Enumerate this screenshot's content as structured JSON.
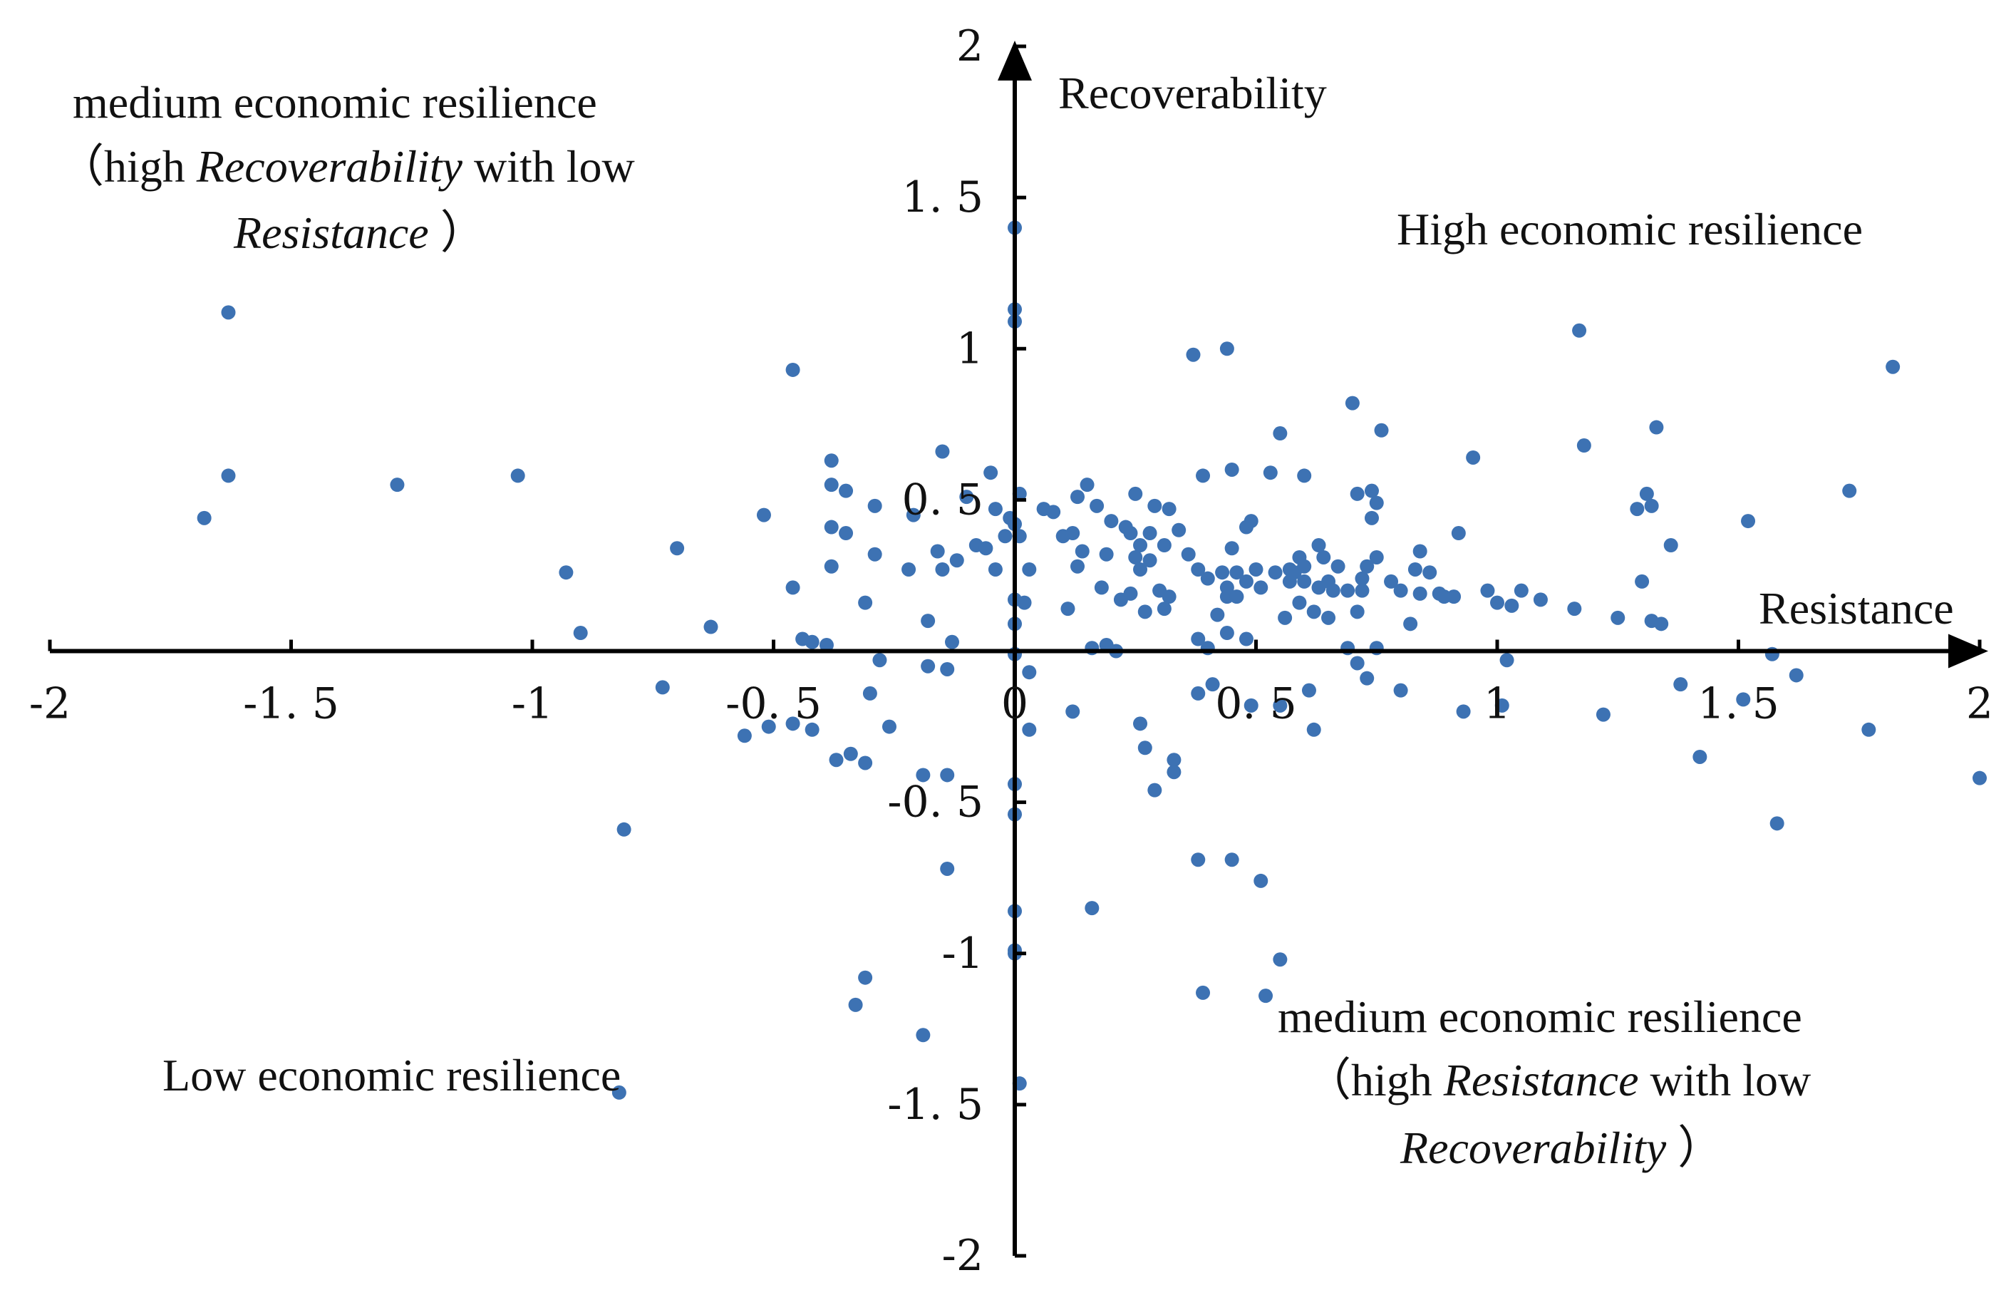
{
  "colors": {
    "axis": "#000000",
    "point": "#3d72b3",
    "text": "#111111"
  },
  "chart_data": {
    "type": "scatter",
    "title": "",
    "xlabel": "Resistance",
    "ylabel": "Recoverability",
    "xlim": [
      -2,
      2
    ],
    "ylim": [
      -2,
      2
    ],
    "grid": false,
    "legend": "none",
    "x_ticks": [
      "-2",
      "-1. 5",
      "-1",
      "-0. 5",
      "0",
      "0. 5",
      "1",
      "1. 5",
      "2"
    ],
    "y_ticks": [
      "2",
      "1. 5",
      "1",
      "0. 5",
      "0",
      "-0. 5",
      "-1",
      "-1. 5",
      "-2"
    ],
    "quadrants": {
      "top_left": {
        "line1": "medium economic resilience",
        "line2_open": "（high ",
        "line2_italic": "Recoverability",
        "line2_close": " with low",
        "line3_italic": "Resistance",
        "line3_close": "）"
      },
      "top_right": {
        "line1": "High economic resilience"
      },
      "bottom_left": {
        "line1": "Low economic resilience"
      },
      "bottom_right": {
        "line1": "medium economic resilience",
        "line2_open": "（high ",
        "line2_italic": "Resistance",
        "line2_close": " with low",
        "line3_italic": "Recoverability",
        "line3_close": "）"
      }
    },
    "series": [
      {
        "name": "regions",
        "points": [
          [
            -1.63,
            1.12
          ],
          [
            -1.63,
            0.58
          ],
          [
            -1.68,
            0.44
          ],
          [
            -1.28,
            0.55
          ],
          [
            -1.03,
            0.58
          ],
          [
            -0.93,
            0.26
          ],
          [
            -0.9,
            0.06
          ],
          [
            -0.7,
            0.34
          ],
          [
            -0.73,
            -0.12
          ],
          [
            -0.81,
            -0.59
          ],
          [
            -0.82,
            -1.46
          ],
          [
            -0.63,
            0.08
          ],
          [
            -0.56,
            -0.28
          ],
          [
            -0.51,
            -0.25
          ],
          [
            -0.52,
            0.45
          ],
          [
            -0.46,
            0.93
          ],
          [
            -0.46,
            0.21
          ],
          [
            -0.46,
            -0.24
          ],
          [
            -0.44,
            0.04
          ],
          [
            -0.42,
            0.03
          ],
          [
            -0.42,
            -0.26
          ],
          [
            -0.39,
            0.02
          ],
          [
            -0.38,
            0.63
          ],
          [
            -0.38,
            0.55
          ],
          [
            -0.38,
            0.41
          ],
          [
            -0.38,
            0.28
          ],
          [
            -0.37,
            -0.36
          ],
          [
            -0.35,
            0.53
          ],
          [
            -0.35,
            0.39
          ],
          [
            -0.34,
            -0.34
          ],
          [
            -0.31,
            0.16
          ],
          [
            -0.31,
            -0.37
          ],
          [
            -0.3,
            -0.14
          ],
          [
            -0.29,
            0.32
          ],
          [
            -0.29,
            0.48
          ],
          [
            -0.28,
            -0.03
          ],
          [
            -0.26,
            -0.25
          ],
          [
            -0.33,
            -1.17
          ],
          [
            -0.31,
            -1.08
          ],
          [
            -0.22,
            0.27
          ],
          [
            -0.21,
            0.45
          ],
          [
            -0.18,
            0.1
          ],
          [
            -0.18,
            -0.05
          ],
          [
            -0.19,
            -0.41
          ],
          [
            -0.19,
            -1.27
          ],
          [
            -0.15,
            0.66
          ],
          [
            -0.16,
            0.33
          ],
          [
            -0.15,
            0.27
          ],
          [
            -0.14,
            -0.06
          ],
          [
            -0.14,
            -0.41
          ],
          [
            -0.14,
            -0.72
          ],
          [
            -0.13,
            0.03
          ],
          [
            -0.12,
            0.3
          ],
          [
            -0.1,
            0.51
          ],
          [
            -0.08,
            0.35
          ],
          [
            -0.06,
            0.34
          ],
          [
            -0.05,
            0.59
          ],
          [
            -0.04,
            0.47
          ],
          [
            -0.04,
            0.27
          ],
          [
            -0.02,
            0.38
          ],
          [
            -0.01,
            0.44
          ],
          [
            0.0,
            1.4
          ],
          [
            0.0,
            1.13
          ],
          [
            0.0,
            1.09
          ],
          [
            0.0,
            0.42
          ],
          [
            0.0,
            0.17
          ],
          [
            0.0,
            0.09
          ],
          [
            0.0,
            -0.01
          ],
          [
            0.0,
            -0.44
          ],
          [
            0.0,
            -0.54
          ],
          [
            0.0,
            -0.86
          ],
          [
            0.0,
            -0.99
          ],
          [
            0.0,
            -1.0
          ],
          [
            0.01,
            0.52
          ],
          [
            0.01,
            0.38
          ],
          [
            0.02,
            0.16
          ],
          [
            0.01,
            -1.43
          ],
          [
            0.03,
            0.27
          ],
          [
            0.03,
            -0.07
          ],
          [
            0.03,
            -0.26
          ],
          [
            0.06,
            0.47
          ],
          [
            0.08,
            0.46
          ],
          [
            0.1,
            0.38
          ],
          [
            0.11,
            0.14
          ],
          [
            0.12,
            0.39
          ],
          [
            0.12,
            -0.2
          ],
          [
            0.13,
            0.28
          ],
          [
            0.13,
            0.51
          ],
          [
            0.14,
            0.33
          ],
          [
            0.15,
            0.55
          ],
          [
            0.16,
            0.01
          ],
          [
            0.17,
            0.48
          ],
          [
            0.18,
            0.21
          ],
          [
            0.19,
            0.32
          ],
          [
            0.19,
            0.02
          ],
          [
            0.16,
            -0.85
          ],
          [
            0.2,
            0.43
          ],
          [
            0.21,
            0.0
          ],
          [
            0.22,
            0.17
          ],
          [
            0.23,
            0.41
          ],
          [
            0.24,
            0.39
          ],
          [
            0.24,
            0.19
          ],
          [
            0.25,
            0.31
          ],
          [
            0.25,
            0.52
          ],
          [
            0.26,
            0.27
          ],
          [
            0.26,
            0.35
          ],
          [
            0.26,
            -0.24
          ],
          [
            0.27,
            -0.32
          ],
          [
            0.27,
            0.13
          ],
          [
            0.28,
            0.39
          ],
          [
            0.28,
            0.3
          ],
          [
            0.29,
            0.48
          ],
          [
            0.29,
            -0.46
          ],
          [
            0.3,
            0.2
          ],
          [
            0.31,
            0.35
          ],
          [
            0.31,
            0.14
          ],
          [
            0.32,
            0.47
          ],
          [
            0.32,
            0.18
          ],
          [
            0.33,
            -0.36
          ],
          [
            0.33,
            -0.4
          ],
          [
            0.34,
            0.4
          ],
          [
            0.36,
            0.32
          ],
          [
            0.37,
            0.98
          ],
          [
            0.38,
            0.27
          ],
          [
            0.38,
            0.04
          ],
          [
            0.38,
            -0.14
          ],
          [
            0.38,
            -0.69
          ],
          [
            0.39,
            0.58
          ],
          [
            0.4,
            0.24
          ],
          [
            0.4,
            0.01
          ],
          [
            0.41,
            -0.11
          ],
          [
            0.39,
            -1.13
          ],
          [
            0.42,
            0.12
          ],
          [
            0.44,
            0.18
          ],
          [
            0.45,
            -0.69
          ],
          [
            0.43,
            0.26
          ],
          [
            0.44,
            0.21
          ],
          [
            0.44,
            0.06
          ],
          [
            0.45,
            0.34
          ],
          [
            0.44,
            1.0
          ],
          [
            0.45,
            0.6
          ],
          [
            0.46,
            0.18
          ],
          [
            0.46,
            0.26
          ],
          [
            0.48,
            0.04
          ],
          [
            0.48,
            0.23
          ],
          [
            0.48,
            0.41
          ],
          [
            0.49,
            -0.18
          ],
          [
            0.49,
            0.43
          ],
          [
            0.5,
            0.27
          ],
          [
            0.51,
            0.21
          ],
          [
            0.51,
            -0.76
          ],
          [
            0.52,
            -1.14
          ],
          [
            0.53,
            0.59
          ],
          [
            0.54,
            0.26
          ],
          [
            0.55,
            0.72
          ],
          [
            0.55,
            -0.18
          ],
          [
            0.55,
            -1.02
          ],
          [
            0.56,
            0.11
          ],
          [
            0.57,
            0.27
          ],
          [
            0.57,
            0.23
          ],
          [
            0.58,
            0.26
          ],
          [
            0.59,
            0.31
          ],
          [
            0.59,
            0.16
          ],
          [
            0.6,
            0.28
          ],
          [
            0.6,
            0.58
          ],
          [
            0.6,
            0.23
          ],
          [
            0.61,
            -0.13
          ],
          [
            0.62,
            -0.26
          ],
          [
            0.62,
            0.13
          ],
          [
            0.63,
            0.35
          ],
          [
            0.64,
            0.31
          ],
          [
            0.65,
            0.23
          ],
          [
            0.65,
            0.11
          ],
          [
            0.67,
            0.28
          ],
          [
            0.69,
            0.2
          ],
          [
            0.69,
            0.01
          ],
          [
            0.7,
            0.82
          ],
          [
            0.71,
            0.52
          ],
          [
            0.71,
            -0.04
          ],
          [
            0.72,
            0.2
          ],
          [
            0.72,
            0.24
          ],
          [
            0.73,
            -0.09
          ],
          [
            0.73,
            0.28
          ],
          [
            0.74,
            0.53
          ],
          [
            0.74,
            0.44
          ],
          [
            0.75,
            0.49
          ],
          [
            0.75,
            0.31
          ],
          [
            0.75,
            0.01
          ],
          [
            0.76,
            0.73
          ],
          [
            0.78,
            0.23
          ],
          [
            0.8,
            0.2
          ],
          [
            0.8,
            -0.13
          ],
          [
            0.82,
            0.09
          ],
          [
            0.83,
            0.27
          ],
          [
            0.84,
            0.19
          ],
          [
            0.84,
            0.33
          ],
          [
            0.86,
            0.26
          ],
          [
            0.88,
            0.19
          ],
          [
            0.89,
            0.18
          ],
          [
            0.91,
            0.18
          ],
          [
            0.92,
            0.39
          ],
          [
            0.93,
            -0.2
          ],
          [
            0.95,
            0.64
          ],
          [
            0.98,
            0.2
          ],
          [
            1.0,
            0.16
          ],
          [
            1.01,
            -0.18
          ],
          [
            1.02,
            -0.03
          ],
          [
            1.03,
            0.15
          ],
          [
            1.05,
            0.2
          ],
          [
            1.09,
            0.17
          ],
          [
            1.16,
            0.14
          ],
          [
            1.17,
            1.06
          ],
          [
            1.18,
            0.68
          ],
          [
            1.22,
            -0.21
          ],
          [
            1.25,
            0.11
          ],
          [
            1.29,
            0.47
          ],
          [
            1.3,
            0.23
          ],
          [
            1.31,
            0.52
          ],
          [
            1.32,
            0.1
          ],
          [
            1.32,
            0.48
          ],
          [
            1.33,
            0.74
          ],
          [
            1.34,
            0.09
          ],
          [
            1.36,
            0.35
          ],
          [
            1.38,
            -0.11
          ],
          [
            1.42,
            -0.35
          ],
          [
            1.51,
            -0.16
          ],
          [
            1.52,
            0.43
          ],
          [
            1.57,
            -0.01
          ],
          [
            1.58,
            -0.57
          ],
          [
            1.62,
            -0.08
          ],
          [
            1.73,
            0.53
          ],
          [
            1.77,
            -0.26
          ],
          [
            1.82,
            0.94
          ],
          [
            2.0,
            -0.42
          ],
          [
            0.66,
            0.2
          ],
          [
            0.71,
            0.13
          ],
          [
            0.63,
            0.21
          ]
        ]
      }
    ]
  }
}
